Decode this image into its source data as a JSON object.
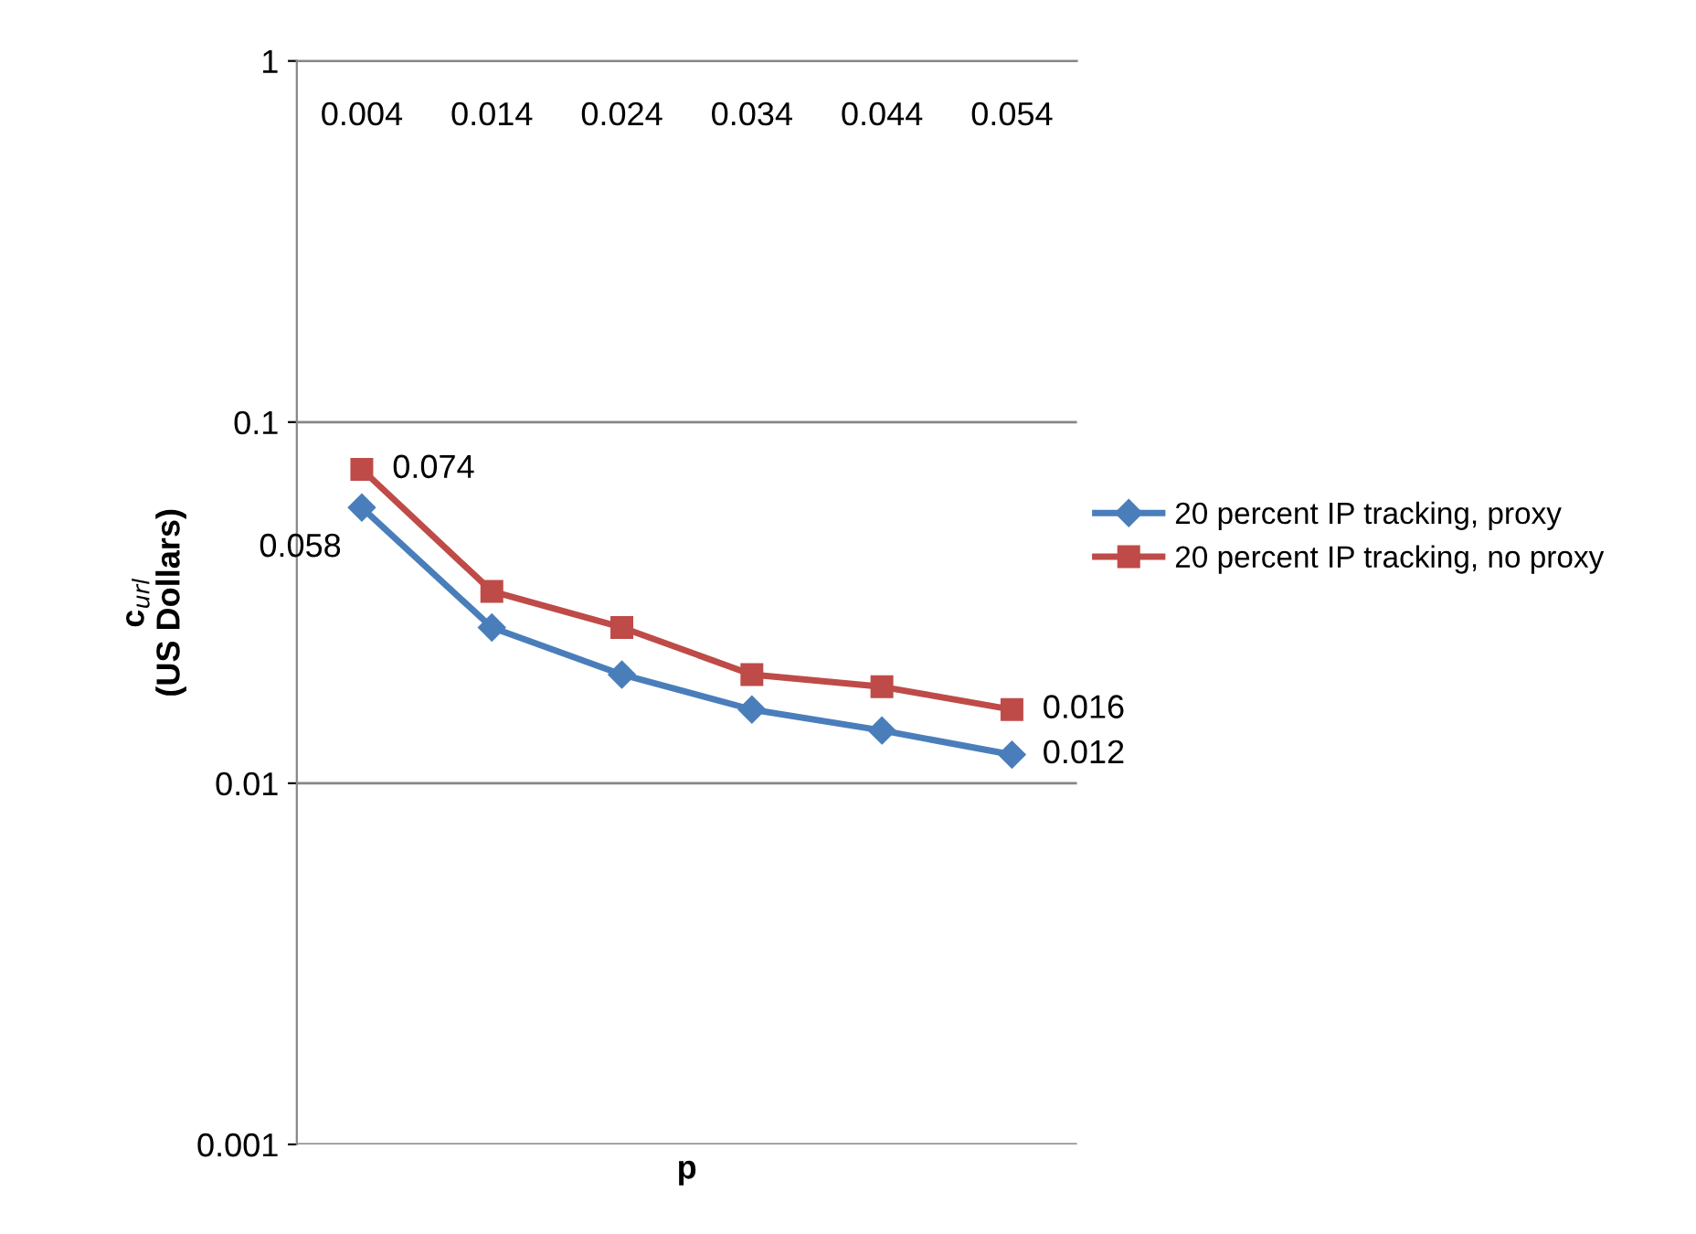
{
  "chart_data": {
    "type": "line",
    "xlabel": "p",
    "ylabel": "c$_{url}$\n(US Dollars)",
    "categories": [
      "0.004",
      "0.014",
      "0.024",
      "0.034",
      "0.044",
      "0.054"
    ],
    "series": [
      {
        "name": "20 percent IP tracking, proxy",
        "color": "#4a7ebb",
        "marker": "diamond",
        "values": [
          0.058,
          0.027,
          0.02,
          0.016,
          0.014,
          0.012
        ],
        "value_labels": [
          "0.058",
          null,
          null,
          null,
          null,
          "0.012"
        ]
      },
      {
        "name": "20 percent IP tracking, no proxy",
        "color": "#be4b48",
        "marker": "square",
        "values": [
          0.074,
          0.034,
          0.027,
          0.02,
          0.0185,
          0.016
        ],
        "value_labels": [
          "0.074",
          null,
          null,
          null,
          null,
          "0.016"
        ]
      }
    ],
    "log": "y",
    "ylim": [
      0.001,
      1
    ],
    "yticks": [
      0.001,
      0.01,
      0.1,
      1
    ],
    "grid": "y",
    "legend": "right",
    "line_style": "solid"
  }
}
